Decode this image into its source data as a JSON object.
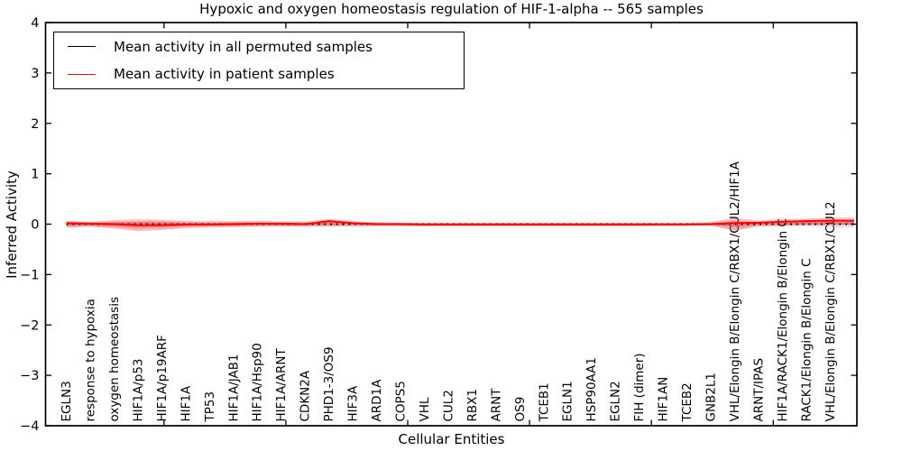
{
  "chart_data": {
    "type": "line",
    "title": "Hypoxic and oxygen homeostasis regulation of HIF-1-alpha -- 565 samples",
    "xlabel": "Cellular Entities",
    "ylabel": "Inferred Activity",
    "ylim": [
      -4,
      4
    ],
    "yticks": [
      4,
      3,
      2,
      1,
      0,
      -1,
      -2,
      -3,
      -4
    ],
    "xticks": [
      5,
      10,
      15,
      20,
      25,
      30
    ],
    "grid": false,
    "legend": {
      "position": "upper left"
    },
    "categories": [
      "EGLN3",
      "response to hypoxia",
      "oxygen homeostasis",
      "HIF1A/p53",
      "HIF1A/p19ARF",
      "HIF1A",
      "TP53",
      "HIF1A/JAB1",
      "HIF1A/Hsp90",
      "HIF1A/ARNT",
      "CDKN2A",
      "PHD1-3/OS9",
      "HIF3A",
      "ARD1A",
      "COPS5",
      "VHL",
      "CUL2",
      "RBX1",
      "ARNT",
      "OS9",
      "TCEB1",
      "EGLN1",
      "HSP90AA1",
      "EGLN2",
      "FIH (dimer)",
      "HIF1AN",
      "TCEB2",
      "GNB2L1",
      "VHL/Elongin B/Elongin C/RBX1/CUL2/HIF1A",
      "ARNT/IPAS",
      "HIF1A/RACK1/Elongin B/Elongin C",
      "RACK1/Elongin B/Elongin C",
      "VHL/Elongin B/Elongin C/RBX1/CUL2"
    ],
    "series": [
      {
        "name": "Mean activity in all permuted samples",
        "color": "#000000",
        "line_style": "dotted",
        "values": [
          0,
          0,
          0,
          0,
          0,
          0,
          0,
          0,
          0,
          0,
          0,
          0,
          0,
          0,
          0,
          0,
          0,
          0,
          0,
          0,
          0,
          0,
          0,
          0,
          0,
          0,
          0,
          0,
          0,
          0,
          0,
          0,
          0
        ]
      },
      {
        "name": "Mean activity in patient samples",
        "color": "#ff0000",
        "line_style": "solid",
        "values": [
          0.02,
          0.01,
          0.0,
          -0.02,
          -0.02,
          -0.01,
          -0.01,
          0.0,
          0.01,
          0.01,
          0.0,
          0.06,
          0.02,
          0.0,
          0.0,
          -0.01,
          -0.01,
          -0.01,
          -0.01,
          -0.01,
          -0.01,
          -0.01,
          -0.01,
          -0.01,
          -0.01,
          -0.01,
          -0.01,
          0.0,
          0.02,
          0.03,
          0.05,
          0.06,
          0.07
        ]
      }
    ],
    "bands": [
      {
        "name": "permuted-envelope",
        "color": "#808080",
        "alpha": 0.22,
        "upper": [
          0.05,
          0.04,
          0.05,
          0.06,
          0.06,
          0.05,
          0.04,
          0.04,
          0.04,
          0.04,
          0.04,
          0.05,
          0.04,
          0.03,
          0.03,
          0.03,
          0.03,
          0.03,
          0.03,
          0.03,
          0.03,
          0.03,
          0.03,
          0.03,
          0.03,
          0.03,
          0.03,
          0.03,
          0.07,
          0.04,
          0.04,
          0.04,
          0.04
        ],
        "lower": [
          -0.06,
          -0.05,
          -0.07,
          -0.1,
          -0.09,
          -0.06,
          -0.05,
          -0.05,
          -0.04,
          -0.04,
          -0.04,
          -0.05,
          -0.04,
          -0.04,
          -0.04,
          -0.04,
          -0.04,
          -0.04,
          -0.04,
          -0.04,
          -0.04,
          -0.04,
          -0.04,
          -0.04,
          -0.04,
          -0.03,
          -0.03,
          -0.03,
          -0.14,
          -0.05,
          -0.04,
          -0.04,
          -0.07
        ]
      },
      {
        "name": "patient-envelope",
        "color": "#ff0000",
        "alpha": 0.24,
        "upper": [
          0.07,
          0.05,
          0.08,
          0.1,
          0.09,
          0.06,
          0.06,
          0.06,
          0.07,
          0.06,
          0.05,
          0.11,
          0.06,
          0.04,
          0.03,
          0.03,
          0.03,
          0.03,
          0.03,
          0.03,
          0.03,
          0.03,
          0.03,
          0.03,
          0.03,
          0.03,
          0.03,
          0.04,
          0.13,
          0.07,
          0.1,
          0.11,
          0.13
        ],
        "lower": [
          -0.07,
          -0.05,
          -0.09,
          -0.14,
          -0.12,
          -0.08,
          -0.07,
          -0.06,
          -0.05,
          -0.05,
          -0.05,
          -0.04,
          -0.04,
          -0.04,
          -0.04,
          -0.04,
          -0.04,
          -0.04,
          -0.04,
          -0.04,
          -0.04,
          -0.04,
          -0.04,
          -0.04,
          -0.04,
          -0.03,
          -0.03,
          -0.03,
          -0.12,
          -0.04,
          -0.03,
          -0.02,
          -0.02
        ]
      }
    ]
  }
}
